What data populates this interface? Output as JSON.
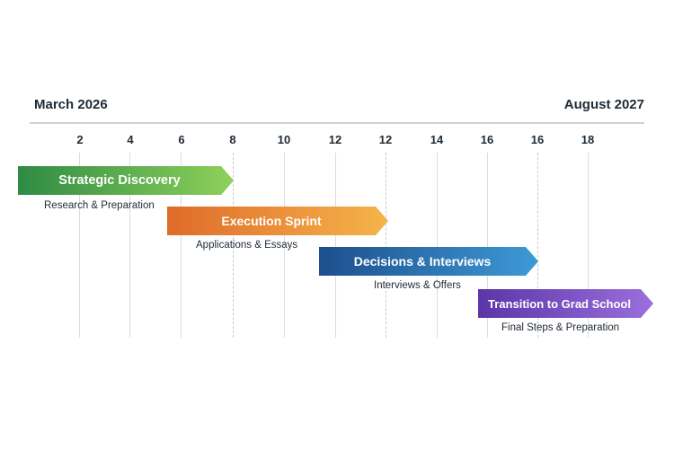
{
  "timeline": {
    "start_label": "March 2026",
    "end_label": "August 2027",
    "ticks": [
      "2",
      "4",
      "6",
      "8",
      "10",
      "12",
      "12",
      "14",
      "16",
      "16",
      "18"
    ]
  },
  "phases": [
    {
      "title": "Strategic Discovery",
      "subtitle": "Research & Preparation",
      "color_start": "#2e8b45",
      "color_end": "#8fd15a"
    },
    {
      "title": "Execution Sprint",
      "subtitle": "Applications & Essays",
      "color_start": "#df6b2a",
      "color_end": "#f6b44a"
    },
    {
      "title": "Decisions & Interviews",
      "subtitle": "Interviews & Offers",
      "color_start": "#1d4f8c",
      "color_end": "#3d9ad6"
    },
    {
      "title": "Transition to Grad School",
      "subtitle": "Final Steps & Preparation",
      "color_start": "#5b36a8",
      "color_end": "#9b6fdc"
    }
  ]
}
